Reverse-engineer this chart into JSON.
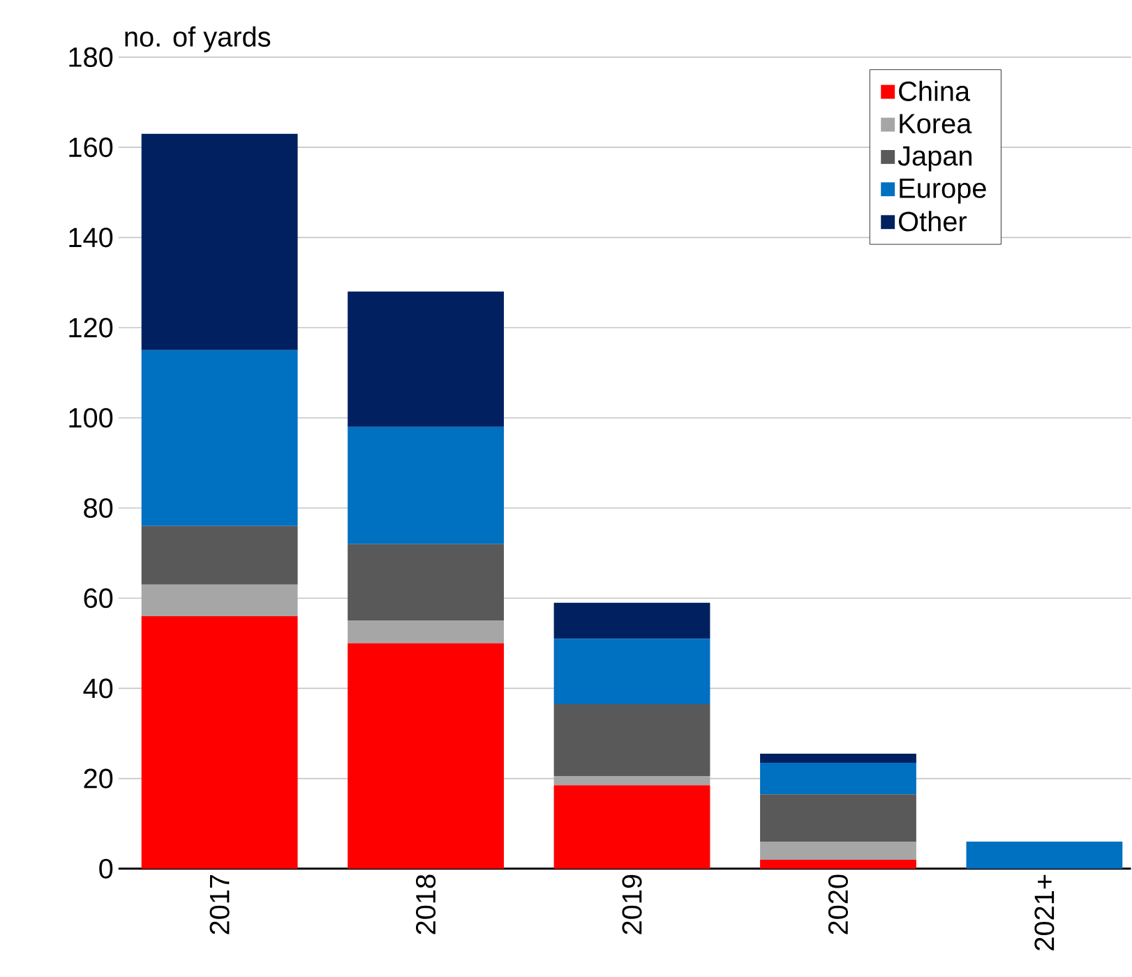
{
  "chart_data": {
    "type": "bar",
    "stacked": true,
    "ylabel": "no. of yards",
    "categories": [
      "2017",
      "2018",
      "2019",
      "2020",
      "2021+"
    ],
    "series": [
      {
        "name": "China",
        "color": "#ff0000",
        "values": [
          56,
          50,
          18.5,
          2,
          0
        ]
      },
      {
        "name": "Korea",
        "color": "#a6a6a6",
        "values": [
          7,
          5,
          2,
          4,
          0
        ]
      },
      {
        "name": "Japan",
        "color": "#595959",
        "values": [
          13,
          17,
          16,
          10.5,
          0
        ]
      },
      {
        "name": "Europe",
        "color": "#0070c0",
        "values": [
          39,
          26,
          14.5,
          7,
          6
        ]
      },
      {
        "name": "Other",
        "color": "#002060",
        "values": [
          48,
          30,
          8,
          2,
          0
        ]
      }
    ],
    "ylim": [
      0,
      180
    ],
    "yticks": [
      0,
      20,
      40,
      60,
      80,
      100,
      120,
      140,
      160,
      180
    ],
    "grid": "y",
    "legend": "top right"
  }
}
